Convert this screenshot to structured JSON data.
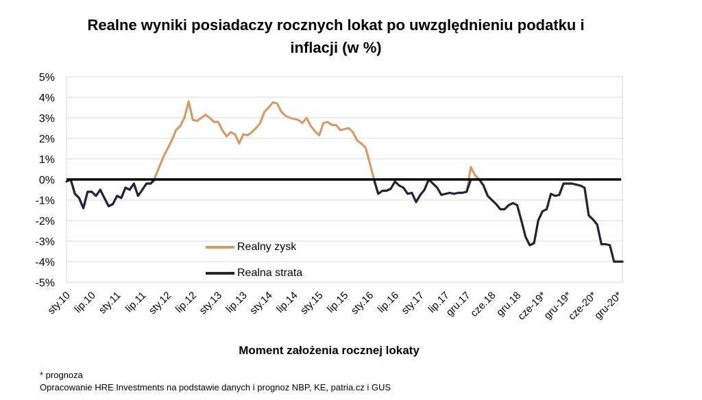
{
  "chart_data": {
    "type": "line",
    "title_lines": [
      "Realne wyniki posiadaczy rocznych lokat po uwzględnieniu podatku i",
      "inflacji (w %)"
    ],
    "xlabel": "Moment założenia rocznej lokaty",
    "ylabel": "",
    "ylim": [
      -5,
      5
    ],
    "ytick_labels": [
      "5%",
      "4%",
      "3%",
      "2%",
      "1%",
      "0%",
      "-1%",
      "-2%",
      "-3%",
      "-4%",
      "-5%"
    ],
    "ytick_values": [
      5,
      4,
      3,
      2,
      1,
      0,
      -1,
      -2,
      -3,
      -4,
      -5
    ],
    "xtick_labels": [
      "sty.10",
      "lip.10",
      "sty.11",
      "lip.11",
      "sty.12",
      "lip.12",
      "sty.13",
      "lip.13",
      "sty.14",
      "lip.14",
      "sty.15",
      "lip.15",
      "sty.16",
      "lip.16",
      "sty.17",
      "lip.17",
      "gru.17",
      "cze.18",
      "gru.18",
      "cze-19*",
      "gru-19*",
      "cze-20*",
      "gru-20*"
    ],
    "xtick_index": [
      0,
      6,
      12,
      18,
      24,
      30,
      36,
      42,
      48,
      54,
      60,
      66,
      72,
      78,
      84,
      90,
      95,
      101,
      107,
      113,
      119,
      125,
      131
    ],
    "grid": true,
    "legend_placement": "center-left",
    "series": [
      {
        "name": "Realny zysk",
        "color": "#d49a6a",
        "values": [
          -0.1,
          0,
          -0.7,
          -0.9,
          -1.4,
          -0.6,
          -0.6,
          -0.8,
          -0.5,
          -0.9,
          -1.3,
          -1.2,
          -0.8,
          -0.9,
          -0.4,
          -0.5,
          -0.2,
          -0.8,
          -0.5,
          -0.2,
          -0.2,
          0.1,
          0.6,
          1.1,
          1.5,
          1.9,
          2.4,
          2.6,
          3.0,
          3.8,
          2.9,
          2.85,
          3.0,
          3.15,
          3.0,
          2.8,
          2.8,
          2.4,
          2.1,
          2.3,
          2.2,
          1.75,
          2.2,
          2.15,
          2.3,
          2.5,
          2.75,
          3.3,
          3.5,
          3.75,
          3.7,
          3.3,
          3.1,
          3.0,
          2.95,
          2.9,
          2.75,
          3.0,
          2.6,
          2.35,
          2.15,
          2.75,
          2.8,
          2.65,
          2.65,
          2.4,
          2.45,
          2.5,
          2.3,
          1.9,
          1.75,
          1.55,
          0.8,
          0,
          -0.7,
          -0.55,
          -0.55,
          -0.45,
          -0.1,
          -0.3,
          -0.4,
          -0.7,
          -0.65,
          -1.1,
          -0.75,
          -0.5,
          0,
          -0.2,
          -0.4,
          -0.75,
          -0.7,
          -0.65,
          -0.7,
          -0.65,
          -0.65,
          -0.6,
          0.6,
          0.2,
          0,
          -0.3,
          -0.8,
          -1.0,
          -1.2,
          -1.45,
          -1.45,
          -1.25,
          -1.15,
          -1.25,
          -2.0,
          -2.8,
          -3.2,
          -3.1,
          -2.0,
          -1.55,
          -1.45,
          -0.7,
          -0.8,
          -0.75,
          -0.2,
          -0.2,
          -0.2,
          -0.25,
          -0.3,
          -0.4,
          -1.75,
          -1.95,
          -2.2,
          -3.15,
          -3.15,
          -3.2,
          -4.0,
          -4.0,
          -4.0
        ]
      },
      {
        "name": "Realna strata",
        "color": "#1f2537",
        "values": [
          -0.1,
          0,
          -0.7,
          -0.9,
          -1.4,
          -0.6,
          -0.6,
          -0.8,
          -0.5,
          -0.9,
          -1.3,
          -1.2,
          -0.8,
          -0.9,
          -0.4,
          -0.5,
          -0.2,
          -0.8,
          -0.5,
          -0.2,
          -0.2,
          0,
          0,
          0,
          0,
          0,
          0,
          0,
          0,
          0,
          0,
          0,
          0,
          0,
          0,
          0,
          0,
          0,
          0,
          0,
          0,
          0,
          0,
          0,
          0,
          0,
          0,
          0,
          0,
          0,
          0,
          0,
          0,
          0,
          0,
          0,
          0,
          0,
          0,
          0,
          0,
          0,
          0,
          0,
          0,
          0,
          0,
          0,
          0,
          0,
          0,
          0,
          0,
          0,
          -0.7,
          -0.55,
          -0.55,
          -0.45,
          -0.1,
          -0.3,
          -0.4,
          -0.7,
          -0.65,
          -1.1,
          -0.75,
          -0.5,
          0,
          -0.2,
          -0.4,
          -0.75,
          -0.7,
          -0.65,
          -0.7,
          -0.65,
          -0.65,
          -0.6,
          0,
          0,
          0,
          -0.3,
          -0.8,
          -1.0,
          -1.2,
          -1.45,
          -1.45,
          -1.25,
          -1.15,
          -1.25,
          -2.0,
          -2.8,
          -3.2,
          -3.1,
          -2.0,
          -1.55,
          -1.45,
          -0.7,
          -0.8,
          -0.75,
          -0.2,
          -0.2,
          -0.2,
          -0.25,
          -0.3,
          -0.4,
          -1.75,
          -1.95,
          -2.2,
          -3.15,
          -3.15,
          -3.2,
          -4.0,
          -4.0,
          -4.0
        ]
      }
    ],
    "zero_line_color": "#000000"
  },
  "footnote": "* prognoza",
  "source": "Opracowanie HRE Investments na podstawie danych i prognoz NBP, KE, patria.cz  i GUS"
}
